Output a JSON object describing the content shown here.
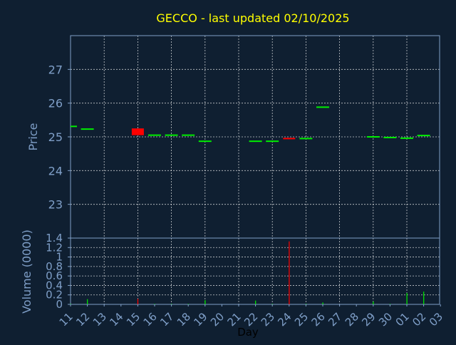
{
  "title": "GECCO - last updated 02/10/2025",
  "colors": {
    "background": "#0f1f31",
    "axis": "#7f9fc8",
    "title": "#ffff00",
    "grid": "#ffffff",
    "up": "#00ee00",
    "down": "#ff0000",
    "xlabel_text": "#000000"
  },
  "chart_data": [
    {
      "type": "candlestick",
      "ylabel": "Price",
      "ylim": [
        22,
        28
      ],
      "yticks": [
        23,
        24,
        25,
        26,
        27
      ],
      "grid": true,
      "categories": [
        "11",
        "12",
        "13",
        "14",
        "15",
        "16",
        "17",
        "18",
        "19",
        "20",
        "21",
        "22",
        "23",
        "24",
        "25",
        "26",
        "27",
        "28",
        "29",
        "30",
        "01",
        "02",
        "03"
      ],
      "candles": [
        {
          "x": "11",
          "open": 25.31,
          "close": 25.31,
          "dir": "up"
        },
        {
          "x": "12",
          "open": 25.23,
          "close": 25.23,
          "dir": "up"
        },
        {
          "x": "15",
          "open": 25.25,
          "close": 25.05,
          "dir": "down"
        },
        {
          "x": "16",
          "open": 25.05,
          "close": 25.05,
          "dir": "up"
        },
        {
          "x": "17",
          "open": 25.05,
          "close": 25.05,
          "dir": "up"
        },
        {
          "x": "18",
          "open": 25.05,
          "close": 25.05,
          "dir": "up"
        },
        {
          "x": "19",
          "open": 24.87,
          "close": 24.87,
          "dir": "up"
        },
        {
          "x": "22",
          "open": 24.87,
          "close": 24.87,
          "dir": "up"
        },
        {
          "x": "23",
          "open": 24.87,
          "close": 24.87,
          "dir": "up"
        },
        {
          "x": "24",
          "open": 24.95,
          "close": 24.92,
          "dir": "down"
        },
        {
          "x": "25",
          "open": 24.95,
          "close": 24.95,
          "dir": "up"
        },
        {
          "x": "26",
          "open": 25.88,
          "close": 25.88,
          "dir": "up"
        },
        {
          "x": "29",
          "open": 25.0,
          "close": 25.0,
          "dir": "up"
        },
        {
          "x": "30",
          "open": 24.98,
          "close": 24.98,
          "dir": "up"
        },
        {
          "x": "01",
          "open": 24.96,
          "close": 24.96,
          "dir": "up"
        },
        {
          "x": "02",
          "open": 25.0,
          "close": 25.04,
          "dir": "up"
        }
      ]
    },
    {
      "type": "bar",
      "ylabel": "Volume (0000)",
      "xlabel": "Day",
      "ylim": [
        0,
        1.4
      ],
      "yticks": [
        "0",
        "0.2",
        "0.4",
        "0.6",
        "0.8",
        "1",
        "1.2",
        "1.4"
      ],
      "categories": [
        "11",
        "12",
        "13",
        "14",
        "15",
        "16",
        "17",
        "18",
        "19",
        "20",
        "21",
        "22",
        "23",
        "24",
        "25",
        "26",
        "27",
        "28",
        "29",
        "30",
        "01",
        "02",
        "03"
      ],
      "bars": [
        {
          "x": "11",
          "value": 0.01,
          "dir": "up"
        },
        {
          "x": "12",
          "value": 0.11,
          "dir": "up"
        },
        {
          "x": "15",
          "value": 0.12,
          "dir": "down"
        },
        {
          "x": "16",
          "value": 0.01,
          "dir": "up"
        },
        {
          "x": "17",
          "value": 0.01,
          "dir": "up"
        },
        {
          "x": "18",
          "value": 0.01,
          "dir": "up"
        },
        {
          "x": "19",
          "value": 0.09,
          "dir": "up"
        },
        {
          "x": "22",
          "value": 0.08,
          "dir": "up"
        },
        {
          "x": "23",
          "value": 0.01,
          "dir": "up"
        },
        {
          "x": "24",
          "value": 1.33,
          "dir": "down"
        },
        {
          "x": "25",
          "value": 0.01,
          "dir": "up"
        },
        {
          "x": "26",
          "value": 0.04,
          "dir": "up"
        },
        {
          "x": "29",
          "value": 0.06,
          "dir": "up"
        },
        {
          "x": "30",
          "value": 0.01,
          "dir": "up"
        },
        {
          "x": "01",
          "value": 0.24,
          "dir": "up"
        },
        {
          "x": "02",
          "value": 0.27,
          "dir": "up"
        }
      ]
    }
  ]
}
